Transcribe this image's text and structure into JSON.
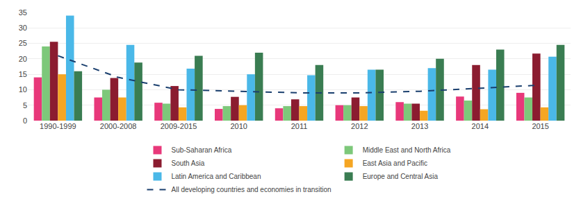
{
  "chart_data": {
    "type": "bar",
    "categories": [
      "1990-1999",
      "2000-2008",
      "2009-2015",
      "2010",
      "2011",
      "2012",
      "2013",
      "2014",
      "2015"
    ],
    "series": [
      {
        "name": "Sub-Saharan Africa",
        "color": "#e8387a",
        "values": [
          14.0,
          7.5,
          5.8,
          3.8,
          4.0,
          5.0,
          6.0,
          7.8,
          9.0
        ]
      },
      {
        "name": "Middle East and North Africa",
        "color": "#7dc87a",
        "values": [
          24.0,
          10.0,
          5.5,
          4.7,
          4.7,
          5.0,
          5.5,
          6.5,
          7.5
        ]
      },
      {
        "name": "South Asia",
        "color": "#8b1c30",
        "values": [
          25.5,
          13.8,
          11.2,
          7.7,
          6.9,
          7.5,
          5.5,
          18.0,
          21.7
        ]
      },
      {
        "name": "East Asia and Pacific",
        "color": "#f5a623",
        "values": [
          15.0,
          7.5,
          4.3,
          5.0,
          4.7,
          4.7,
          3.2,
          3.7,
          4.3
        ]
      },
      {
        "name": "Latin America and Caribbean",
        "color": "#4ab8e8",
        "values": [
          34.0,
          24.5,
          16.8,
          15.0,
          14.7,
          16.5,
          17.0,
          16.5,
          20.7
        ]
      },
      {
        "name": "Europe and Central Asia",
        "color": "#3a7d52",
        "values": [
          16.0,
          18.8,
          21.0,
          22.0,
          18.0,
          16.5,
          20.0,
          23.0,
          24.5
        ]
      },
      {
        "name": "All developing countries and economies in transition",
        "type": "line",
        "line_style": "dashed",
        "color": "#1a3f6e",
        "values": [
          21.0,
          14.0,
          10.0,
          9.5,
          9.0,
          9.0,
          9.5,
          10.5,
          11.5
        ]
      }
    ],
    "ylim": [
      0,
      35
    ],
    "yticks": [
      0,
      5,
      10,
      15,
      20,
      25,
      30,
      35
    ],
    "grid": true,
    "legend": "bottom"
  }
}
